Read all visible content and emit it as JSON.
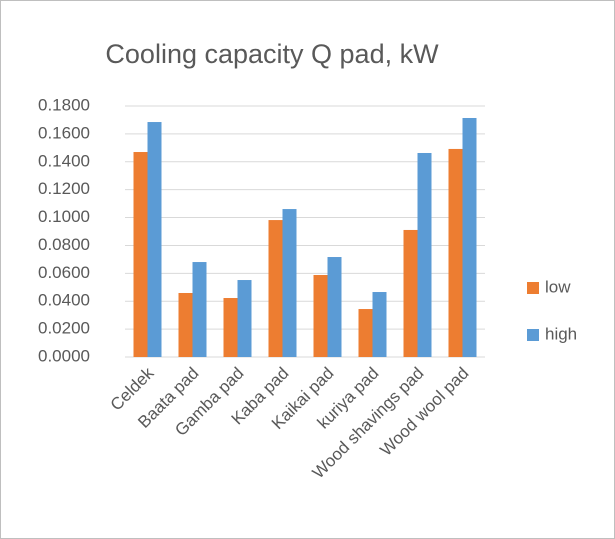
{
  "chart_data": {
    "type": "bar",
    "title": "Cooling capacity Q pad, kW",
    "categories": [
      "Celdek",
      "Baata pad",
      "Gamba pad",
      "Kaba pad",
      "Kaikai pad",
      "kuriya pad",
      "Wood shavings pad",
      "Wood wool pad"
    ],
    "series": [
      {
        "name": "low",
        "color": "#ed7d31",
        "values": [
          0.147,
          0.0459,
          0.0423,
          0.0982,
          0.0588,
          0.0344,
          0.0911,
          0.1492
        ]
      },
      {
        "name": "high",
        "color": "#5b9bd5",
        "values": [
          0.1685,
          0.0681,
          0.0552,
          0.1061,
          0.0717,
          0.0466,
          0.1463,
          0.1714
        ]
      }
    ],
    "ylim": [
      0,
      0.18
    ],
    "yticks": [
      {
        "value": 0,
        "label": "0.0000"
      },
      {
        "value": 0.02,
        "label": "0.0200"
      },
      {
        "value": 0.04,
        "label": "0.0400"
      },
      {
        "value": 0.06,
        "label": "0.0600"
      },
      {
        "value": 0.08,
        "label": "0.0800"
      },
      {
        "value": 0.1,
        "label": "0.1000"
      },
      {
        "value": 0.12,
        "label": "0.1200"
      },
      {
        "value": 0.14,
        "label": "0.1400"
      },
      {
        "value": 0.16,
        "label": "0.1600"
      },
      {
        "value": 0.18,
        "label": "0.1800"
      }
    ],
    "grid": true,
    "legend": "right"
  }
}
